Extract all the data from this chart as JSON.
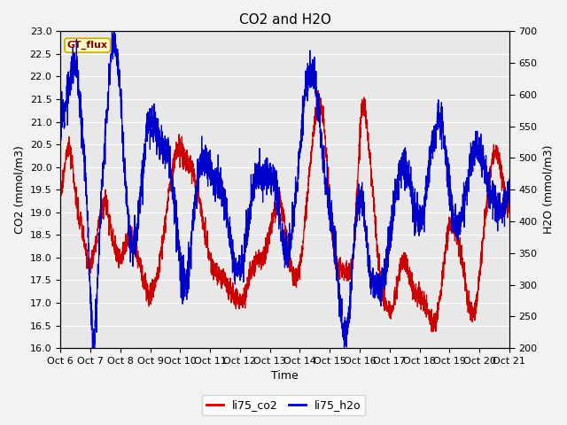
{
  "title": "CO2 and H2O",
  "xlabel": "Time",
  "ylabel_left": "CO2 (mmol/m3)",
  "ylabel_right": "H2O (mmol/m3)",
  "ylim_left": [
    16.0,
    23.0
  ],
  "ylim_right": [
    200,
    700
  ],
  "yticks_left": [
    16.0,
    16.5,
    17.0,
    17.5,
    18.0,
    18.5,
    19.0,
    19.5,
    20.0,
    20.5,
    21.0,
    21.5,
    22.0,
    22.5,
    23.0
  ],
  "yticks_right": [
    200,
    250,
    300,
    350,
    400,
    450,
    500,
    550,
    600,
    650,
    700
  ],
  "xtick_labels": [
    "Oct 6",
    "Oct 7",
    "Oct 8",
    "Oct 9",
    "Oct 10",
    "Oct 11",
    "Oct 12",
    "Oct 13",
    "Oct 14",
    "Oct 15",
    "Oct 16",
    "Oct 17",
    "Oct 18",
    "Oct 19",
    "Oct 20",
    "Oct 21"
  ],
  "line_co2_color": "#cc0000",
  "line_h2o_color": "#0000cc",
  "legend_co2": "li75_co2",
  "legend_h2o": "li75_h2o",
  "gt_flux_label": "GT_flux",
  "plot_bg_color": "#e8e8e8",
  "fig_bg_color": "#f2f2f2",
  "grid_color": "#ffffff",
  "title_fontsize": 11,
  "axis_label_fontsize": 9,
  "tick_fontsize": 8,
  "legend_fontsize": 9,
  "line_width": 0.9
}
